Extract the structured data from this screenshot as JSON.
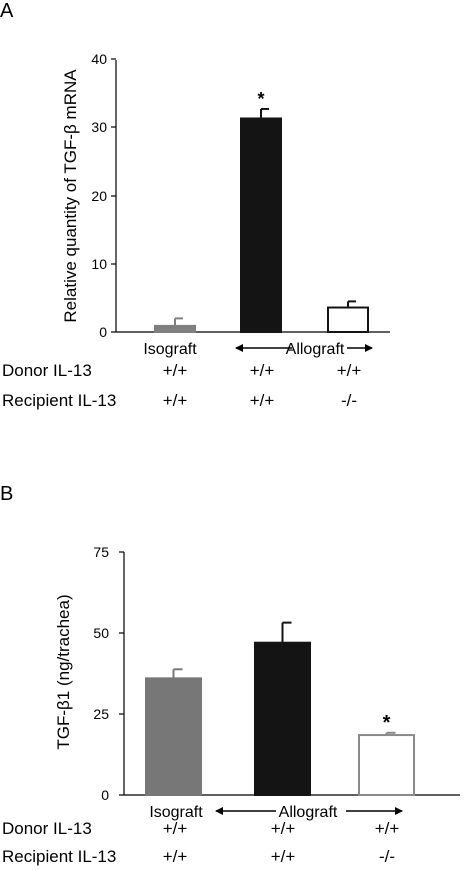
{
  "chart_data": [
    {
      "panel_label": "A",
      "type": "bar",
      "ylabel": "Relative quantity of TGF-β mRNA",
      "ylim": [
        0,
        40
      ],
      "yticks": [
        "0",
        "10",
        "20",
        "30",
        "40"
      ],
      "categories": [
        "Isograft",
        "Allograft",
        "Allograft"
      ],
      "values": [
        0.9,
        31.4,
        3.6
      ],
      "errors": [
        1.1,
        1.4,
        0.9
      ],
      "significance": [
        "",
        "*",
        ""
      ],
      "bar_fill": [
        "#7f7f7f",
        "#141414",
        "#ffffff"
      ],
      "bar_stroke": [
        "#7f7f7f",
        "#141414",
        "#141414"
      ],
      "group_labels": {
        "isograft": "Isograft",
        "allograft": "Allograft"
      },
      "rows": [
        {
          "label": "Donor IL-13",
          "values": [
            "+/+",
            "+/+",
            "+/+"
          ]
        },
        {
          "label": "Recipient IL-13",
          "values": [
            "+/+",
            "+/+",
            "-/-"
          ]
        }
      ]
    },
    {
      "panel_label": "B",
      "type": "bar",
      "ylabel": "TGF-β1 (ng/trachea)",
      "ylim": [
        0,
        75
      ],
      "yticks": [
        "0",
        "25",
        "50",
        "75"
      ],
      "categories": [
        "Isograft",
        "Allograft",
        "Allograft"
      ],
      "values": [
        36,
        47,
        18.5
      ],
      "errors": [
        2.8,
        6.2,
        0.7
      ],
      "significance": [
        "",
        "",
        "*"
      ],
      "bar_fill": [
        "#777777",
        "#141414",
        "#ffffff"
      ],
      "bar_stroke": [
        "#777777",
        "#141414",
        "#8a8a8a"
      ],
      "group_labels": {
        "isograft": "Isograft",
        "allograft": "Allograft"
      },
      "rows": [
        {
          "label": "Donor IL-13",
          "values": [
            "+/+",
            "+/+",
            "+/+"
          ]
        },
        {
          "label": "Recipient IL-13",
          "values": [
            "+/+",
            "+/+",
            "-/-"
          ]
        }
      ]
    }
  ]
}
